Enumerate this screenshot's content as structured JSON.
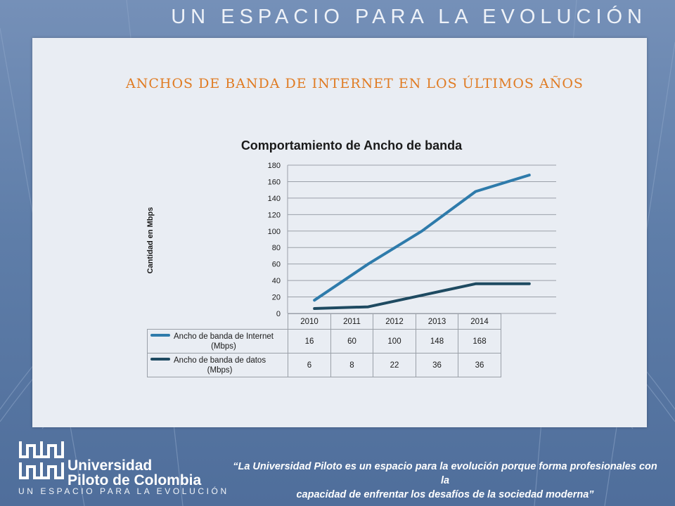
{
  "header": {
    "slogan": "UN ESPACIO PARA LA EVOLUCIÓN"
  },
  "slide": {
    "title": "ANCHOS DE BANDA DE INTERNET EN LOS ÚLTIMOS AÑOS"
  },
  "chart_data": {
    "type": "line",
    "title": "Comportamiento de Ancho de banda",
    "xlabel": "",
    "ylabel": "Cantidad en Mbps",
    "categories": [
      "2010",
      "2011",
      "2012",
      "2013",
      "2014"
    ],
    "ylim": [
      0,
      180
    ],
    "yticks": [
      0,
      20,
      40,
      60,
      80,
      100,
      120,
      140,
      160,
      180
    ],
    "grid": true,
    "legend": "data-table",
    "series": [
      {
        "name_line1": "Ancho de banda de Internet",
        "name_line2": "(Mbps)",
        "values": [
          16,
          60,
          100,
          148,
          168
        ],
        "color": "#2e7bab"
      },
      {
        "name_line1": "Ancho de banda de datos",
        "name_line2": "(Mbps)",
        "values": [
          6,
          8,
          22,
          36,
          36
        ],
        "color": "#1e4a61"
      }
    ]
  },
  "footer": {
    "university_line1": "Universidad",
    "university_line2": "Piloto de Colombia",
    "tagline": "UN ESPACIO PARA LA EVOLUCIÓN",
    "quote_line1": "“La Universidad Piloto es un espacio para la evolución porque forma profesionales con la",
    "quote_line2": "capacidad de enfrentar los desafíos de la sociedad moderna”"
  },
  "colors": {
    "accent_title": "#e07b22",
    "panel": "#e9edf3",
    "background": "#5f7ea9"
  }
}
